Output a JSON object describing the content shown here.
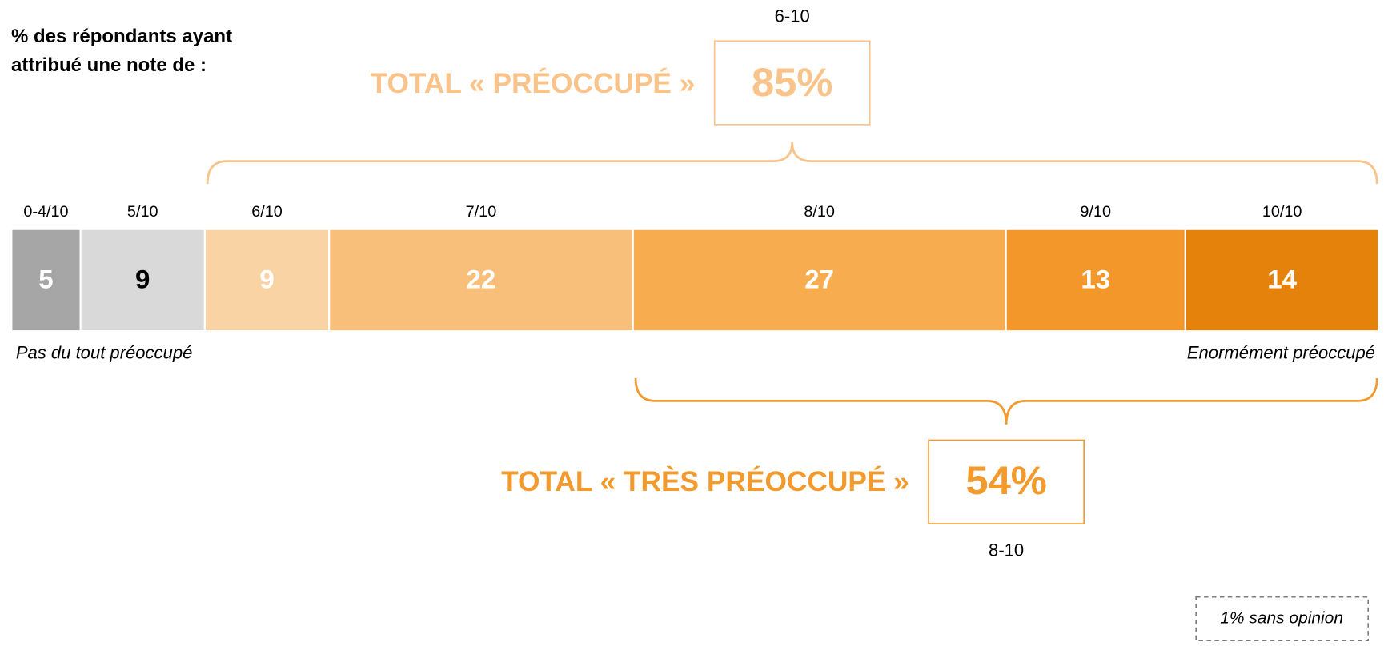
{
  "chart_data": {
    "type": "stacked_bar",
    "title": "% des répondants ayant attribué une note de :",
    "categories": [
      "0-4/10",
      "5/10",
      "6/10",
      "7/10",
      "8/10",
      "9/10",
      "10/10"
    ],
    "values": [
      5,
      9,
      9,
      22,
      27,
      13,
      14
    ],
    "colors": [
      "#a6a6a6",
      "#d9d9d9",
      "#fad3a4",
      "#f8bf7a",
      "#f7ac4f",
      "#f4972b",
      "#e5820c"
    ],
    "label_colors": [
      "#ffffff",
      "#000000",
      "#ffffff",
      "#ffffff",
      "#ffffff",
      "#ffffff",
      "#ffffff"
    ],
    "left_label": "Pas du tout préoccupé",
    "right_label": "Enormément préoccupé",
    "totals": [
      {
        "label": "TOTAL « PRÉOCCUPÉ »",
        "value": 85,
        "value_label": "85%",
        "range": "6-10",
        "color": "#f9c38a"
      },
      {
        "label": "TOTAL « TRÈS PRÉOCCUPÉ »",
        "value": 54,
        "value_label": "54%",
        "range": "8-10",
        "color": "#f39a2e"
      }
    ],
    "note": {
      "value": 1,
      "label": "1% sans opinion"
    }
  }
}
